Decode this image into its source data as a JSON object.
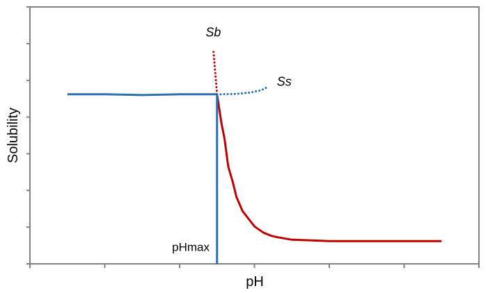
{
  "chart_data": {
    "type": "line",
    "title": "",
    "xlabel": "pH",
    "ylabel": "Solubility",
    "xlim": [
      0,
      6
    ],
    "ylim": [
      0,
      7
    ],
    "x_ticks_count": 7,
    "y_ticks_count": 8,
    "grid": false,
    "series": [
      {
        "key": "flat",
        "color": "#2e6fad",
        "style": "solid",
        "x": [
          0.5,
          1.0,
          1.5,
          2.0,
          2.5
        ],
        "y": [
          4.62,
          4.62,
          4.6,
          4.62,
          4.62
        ]
      },
      {
        "key": "drop",
        "color": "#c00000",
        "style": "solid",
        "x": [
          2.5,
          2.56,
          2.6,
          2.65,
          2.71,
          2.76,
          2.84,
          3.0,
          3.12,
          3.23,
          3.32,
          3.49,
          4.01,
          5.5
        ],
        "y": [
          4.62,
          3.82,
          3.41,
          2.65,
          2.23,
          1.82,
          1.44,
          1.02,
          0.85,
          0.76,
          0.72,
          0.66,
          0.62,
          0.62
        ]
      },
      {
        "key": "sb",
        "name": "Sb",
        "color": "#c00000",
        "style": "dotted",
        "x": [
          2.5,
          2.45
        ],
        "y": [
          4.62,
          5.86
        ]
      },
      {
        "key": "ss",
        "name": "Ss",
        "color": "#2e6fad",
        "style": "dotted",
        "x": [
          2.5,
          2.76,
          2.95,
          3.09,
          3.18
        ],
        "y": [
          4.62,
          4.63,
          4.67,
          4.73,
          4.82
        ]
      },
      {
        "key": "phmax-line",
        "color": "#2e6fad",
        "style": "solid",
        "x": [
          2.5,
          2.5
        ],
        "y": [
          0,
          4.62
        ]
      }
    ],
    "annotations": [
      {
        "text": "Sb",
        "x": 2.45,
        "y": 6.2
      },
      {
        "text": "Ss",
        "x": 3.3,
        "y": 4.85
      },
      {
        "text": "pHmax",
        "x": 2.4,
        "y": 0.35
      }
    ]
  }
}
